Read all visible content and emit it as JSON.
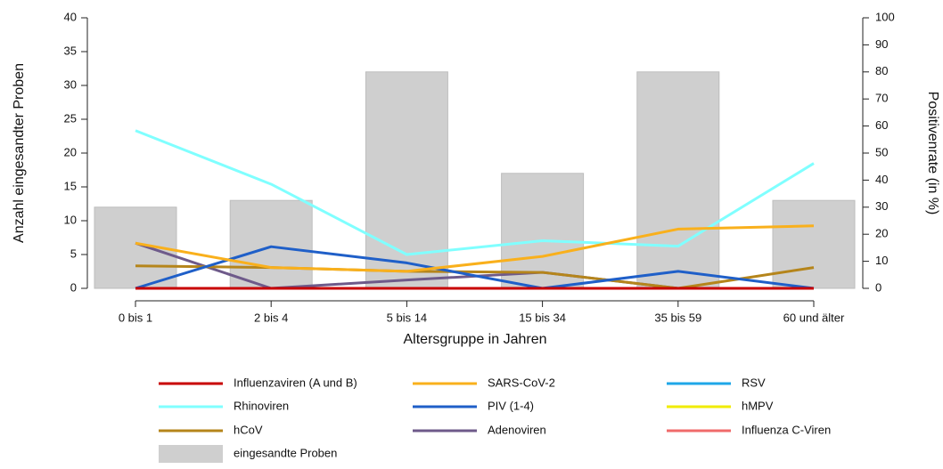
{
  "chart_data": {
    "type": "bar",
    "x_label": "Altersgruppe in Jahren",
    "y_label": "Anzahl eingesandter Proben",
    "y2_label": "Positivenrate (in %)",
    "categories": [
      "0 bis 1",
      "2 bis 4",
      "5 bis 14",
      "15 bis 34",
      "35 bis 59",
      "60 und älter"
    ],
    "ylim": [
      0,
      40
    ],
    "yticks": [
      0,
      5,
      10,
      15,
      20,
      25,
      30,
      35,
      40
    ],
    "y2lim": [
      0,
      100
    ],
    "y2ticks": [
      0,
      10,
      20,
      30,
      40,
      50,
      60,
      70,
      80,
      90,
      100
    ],
    "series": [
      {
        "name": "Influenzaviren (A und B)",
        "type": "line",
        "axis": "y2",
        "color": "#c80000",
        "values": [
          0,
          0,
          0,
          0,
          0,
          0
        ]
      },
      {
        "name": "SARS-CoV-2",
        "type": "line",
        "axis": "y2",
        "color": "#f9b01c",
        "values": [
          16.7,
          7.7,
          6.3,
          11.8,
          21.9,
          23.1
        ]
      },
      {
        "name": "RSV",
        "type": "line",
        "axis": "y2",
        "color": "#1ea7e8",
        "values": [
          0,
          0,
          0,
          0,
          0,
          0
        ]
      },
      {
        "name": "Rhinoviren",
        "type": "line",
        "axis": "y2",
        "color": "#80ffff",
        "values": [
          58.3,
          38.5,
          12.5,
          17.6,
          15.6,
          46.2
        ]
      },
      {
        "name": "PIV (1-4)",
        "type": "line",
        "axis": "y2",
        "color": "#1f5fc8",
        "values": [
          0,
          15.4,
          9.4,
          0,
          6.3,
          0
        ]
      },
      {
        "name": "hMPV",
        "type": "line",
        "axis": "y2",
        "color": "#f0ec00",
        "values": [
          0,
          0,
          0,
          0,
          0,
          0
        ]
      },
      {
        "name": "hCoV",
        "type": "line",
        "axis": "y2",
        "color": "#b5851b",
        "values": [
          8.3,
          7.7,
          6.3,
          5.9,
          0,
          7.7
        ]
      },
      {
        "name": "Adenoviren",
        "type": "line",
        "axis": "y2",
        "color": "#6e5a8a",
        "values": [
          16.7,
          0,
          3.1,
          5.9,
          0,
          0
        ]
      },
      {
        "name": "Influenza C-Viren",
        "type": "line",
        "axis": "y2",
        "color": "#f06a6a",
        "values": [
          0,
          0,
          0,
          0,
          0,
          0
        ]
      },
      {
        "name": "eingesandte Proben",
        "type": "bar",
        "axis": "y",
        "color": "#cfcfcf",
        "values": [
          12,
          13,
          32,
          17,
          32,
          13
        ]
      }
    ]
  }
}
